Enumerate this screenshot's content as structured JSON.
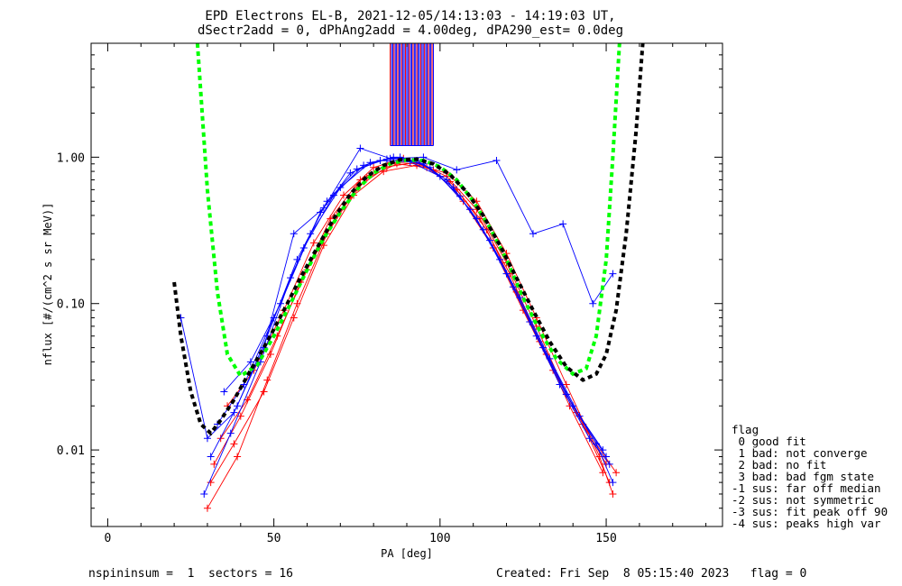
{
  "title_line1": "EPD Electrons EL-B, 2021-12-05/14:13:03 - 14:19:03 UT,",
  "title_line2": "dSectr2add = 0, dPhAng2add = 4.00deg, dPA290_est=   0.0deg",
  "footer_left": "nspininsum =  1  sectors = 16",
  "footer_right": "Created: Fri Sep  8 05:15:40 2023   flag = 0",
  "flag_legend": {
    "title": "flag",
    "entries": [
      " 0 good fit",
      " 1 bad: not converge",
      " 2 bad: no fit",
      " 3 bad: bad fgm state",
      "-1 sus: far off median",
      "-2 sus: not symmetric",
      "-3 sus: fit peak off 90",
      "-4 sus: peaks high var"
    ]
  },
  "colors": {
    "series_red": "#ff0000",
    "series_blue": "#0000ff",
    "fit_green": "#00ff00",
    "fit_black": "#000000"
  },
  "chart_data": {
    "type": "line",
    "xlabel": "PA [deg]",
    "ylabel": "nflux [#/(cm^2 s sr MeV)]",
    "xlim": [
      -5,
      185
    ],
    "ylim": [
      0.003,
      6.0
    ],
    "yscale": "log",
    "xticks": [
      0,
      50,
      100,
      150
    ],
    "xtick_labels": [
      "0",
      "50",
      "100",
      "150"
    ],
    "yticks": [
      0.01,
      0.1,
      1.0
    ],
    "ytick_labels": [
      "0.01",
      "0.10",
      "1.00"
    ],
    "series": [
      {
        "color": "red",
        "style": "line-plus",
        "x": [
          31,
          38,
          47,
          56,
          65,
          74,
          83,
          93,
          102,
          111,
          120,
          129,
          138,
          148,
          152
        ],
        "y": [
          0.006,
          0.011,
          0.025,
          0.08,
          0.25,
          0.55,
          0.8,
          0.88,
          0.78,
          0.5,
          0.22,
          0.08,
          0.028,
          0.009,
          0.005
        ]
      },
      {
        "color": "red",
        "style": "line-plus",
        "x": [
          34,
          42,
          51,
          60,
          69,
          78,
          87,
          96,
          105,
          114,
          123,
          132,
          141,
          150
        ],
        "y": [
          0.012,
          0.022,
          0.06,
          0.17,
          0.4,
          0.72,
          0.9,
          0.85,
          0.6,
          0.32,
          0.12,
          0.045,
          0.018,
          0.008
        ]
      },
      {
        "color": "red",
        "style": "line-plus",
        "x": [
          32,
          40,
          49,
          58,
          67,
          76,
          85,
          94,
          103,
          112,
          121,
          130,
          139,
          149
        ],
        "y": [
          0.008,
          0.017,
          0.045,
          0.14,
          0.38,
          0.7,
          0.92,
          0.9,
          0.68,
          0.38,
          0.16,
          0.055,
          0.02,
          0.007
        ]
      },
      {
        "color": "red",
        "style": "line-plus",
        "x": [
          36,
          44,
          53,
          62,
          71,
          80,
          89,
          98,
          107,
          116,
          125,
          134,
          143,
          151
        ],
        "y": [
          0.02,
          0.035,
          0.09,
          0.26,
          0.55,
          0.85,
          0.98,
          0.82,
          0.5,
          0.24,
          0.09,
          0.035,
          0.015,
          0.006
        ]
      },
      {
        "color": "red",
        "style": "line-plus",
        "x": [
          30,
          39,
          48,
          57,
          66,
          75,
          84,
          93,
          102,
          111,
          120,
          129,
          138,
          147,
          153
        ],
        "y": [
          0.004,
          0.009,
          0.03,
          0.1,
          0.3,
          0.62,
          0.86,
          0.92,
          0.74,
          0.44,
          0.19,
          0.07,
          0.024,
          0.011,
          0.007
        ]
      },
      {
        "color": "blue",
        "style": "line-plus",
        "x": [
          29,
          37,
          46,
          55,
          64,
          73,
          82,
          91,
          100,
          109,
          118,
          127,
          136,
          145,
          151
        ],
        "y": [
          0.005,
          0.013,
          0.04,
          0.15,
          0.42,
          0.78,
          0.95,
          0.93,
          0.74,
          0.44,
          0.2,
          0.075,
          0.028,
          0.012,
          0.008
        ]
      },
      {
        "color": "blue",
        "style": "line-plus",
        "x": [
          33,
          41,
          50,
          59,
          68,
          77,
          86,
          95,
          104,
          113,
          122,
          131,
          140,
          149
        ],
        "y": [
          0.015,
          0.028,
          0.08,
          0.24,
          0.55,
          0.88,
          1.0,
          0.9,
          0.62,
          0.32,
          0.13,
          0.05,
          0.02,
          0.01
        ]
      },
      {
        "color": "blue",
        "style": "line-plus",
        "x": [
          31,
          39,
          48,
          57,
          66,
          75,
          84,
          93,
          102,
          111,
          120,
          129,
          138,
          147,
          152
        ],
        "y": [
          0.009,
          0.02,
          0.06,
          0.2,
          0.5,
          0.83,
          0.97,
          0.95,
          0.7,
          0.38,
          0.16,
          0.06,
          0.024,
          0.011,
          0.006
        ]
      },
      {
        "color": "blue",
        "style": "line-plus",
        "x": [
          35,
          43,
          52,
          61,
          70,
          79,
          88,
          97,
          106,
          115,
          124,
          133,
          142,
          150
        ],
        "y": [
          0.025,
          0.04,
          0.1,
          0.3,
          0.62,
          0.92,
          1.0,
          0.85,
          0.54,
          0.27,
          0.11,
          0.042,
          0.017,
          0.009
        ]
      },
      {
        "color": "blue",
        "style": "line-plus",
        "x": [
          22,
          30,
          38,
          47,
          56,
          65,
          76,
          85,
          95,
          105,
          117,
          128,
          137,
          146,
          152
        ],
        "y": [
          0.08,
          0.012,
          0.018,
          0.05,
          0.3,
          0.45,
          1.15,
          0.98,
          1.0,
          0.82,
          0.95,
          0.3,
          0.35,
          0.1,
          0.16
        ]
      }
    ],
    "fit_curves": [
      {
        "name": "",
        "color": "green",
        "style": "dashed",
        "x": [
          27,
          30,
          33,
          36,
          40,
          45,
          50,
          55,
          60,
          65,
          70,
          75,
          80,
          85,
          90,
          95,
          100,
          105,
          110,
          115,
          120,
          125,
          130,
          135,
          140,
          144,
          147,
          150,
          152,
          154
        ],
        "y": [
          6.0,
          0.6,
          0.12,
          0.045,
          0.032,
          0.038,
          0.06,
          0.1,
          0.17,
          0.28,
          0.42,
          0.6,
          0.78,
          0.9,
          0.96,
          0.95,
          0.86,
          0.7,
          0.5,
          0.33,
          0.2,
          0.11,
          0.065,
          0.042,
          0.033,
          0.036,
          0.06,
          0.2,
          1.0,
          6.0
        ]
      },
      {
        "name": "",
        "color": "black",
        "style": "dashed",
        "x": [
          20,
          22,
          25,
          28,
          31,
          34,
          38,
          43,
          48,
          53,
          58,
          63,
          68,
          73,
          78,
          83,
          88,
          93,
          98,
          103,
          108,
          113,
          118,
          123,
          128,
          133,
          138,
          143,
          147,
          150,
          153,
          156,
          159,
          161
        ],
        "y": [
          0.14,
          0.06,
          0.025,
          0.015,
          0.013,
          0.016,
          0.022,
          0.035,
          0.055,
          0.09,
          0.15,
          0.24,
          0.38,
          0.56,
          0.74,
          0.88,
          0.96,
          0.97,
          0.9,
          0.76,
          0.58,
          0.4,
          0.25,
          0.15,
          0.09,
          0.055,
          0.037,
          0.03,
          0.033,
          0.045,
          0.09,
          0.3,
          1.5,
          6.0
        ]
      }
    ],
    "saturated_column": {
      "x_range": [
        85,
        98
      ],
      "y_from": 1.2,
      "y_to": 6.0
    },
    "grid": false,
    "legend": "right-bottom"
  }
}
